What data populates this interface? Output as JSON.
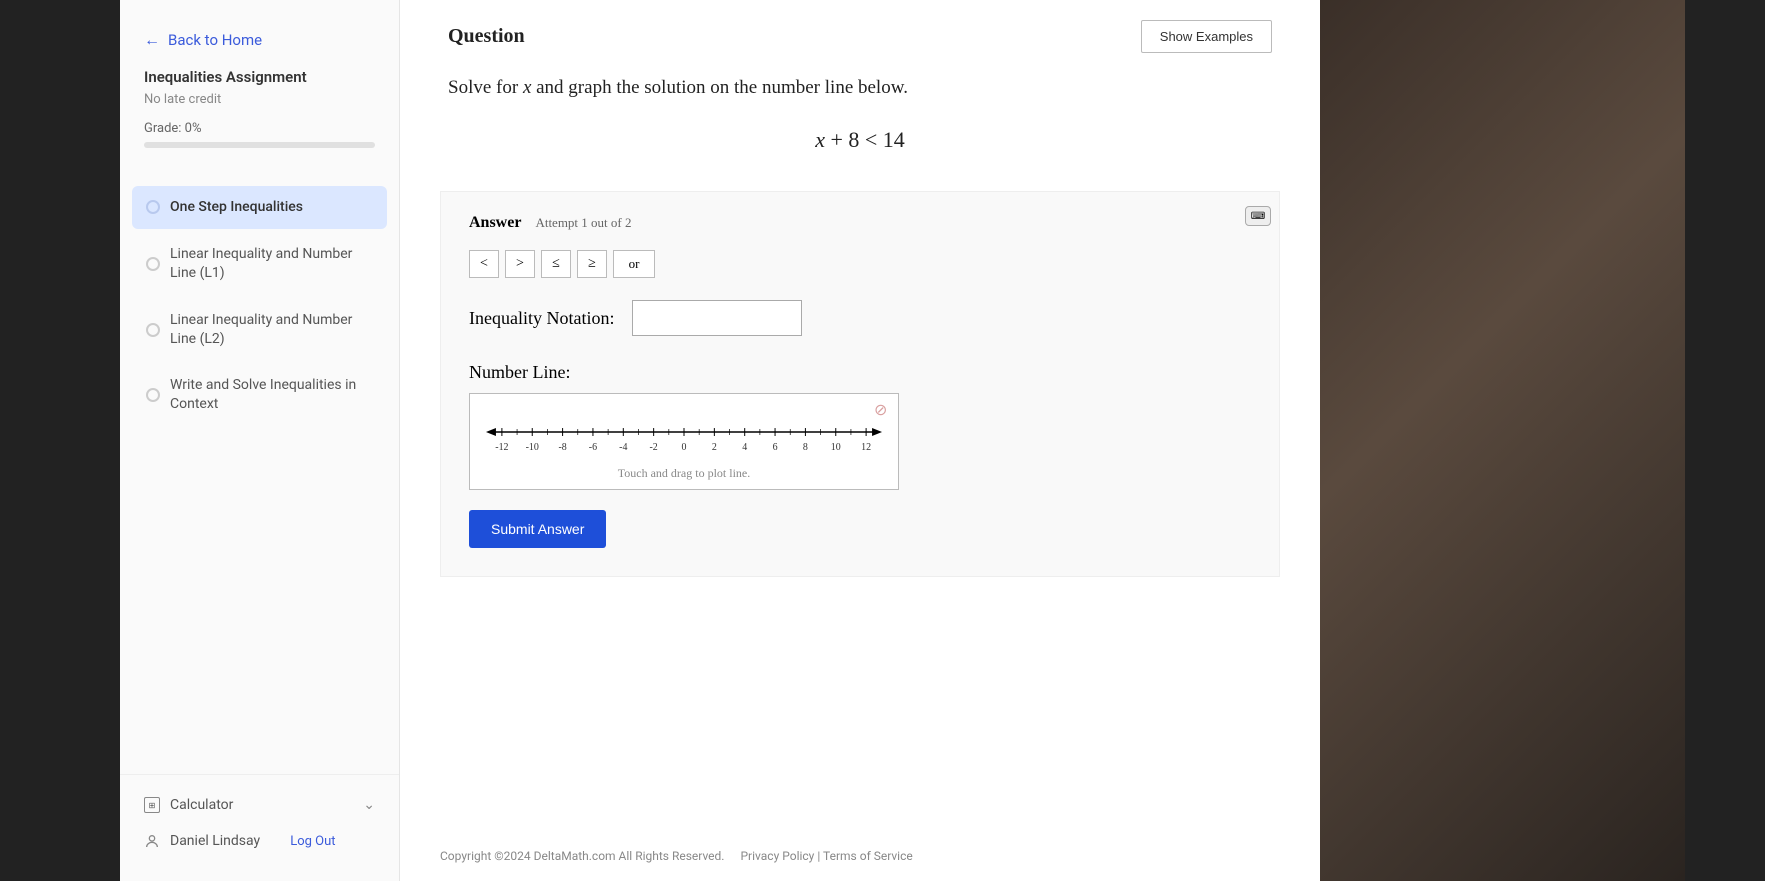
{
  "sidebar": {
    "back_label": "Back to Home",
    "assignment_title": "Inequalities Assignment",
    "late_credit": "No late credit",
    "grade_label": "Grade: 0%",
    "items": [
      {
        "label": "One Step Inequalities",
        "active": true
      },
      {
        "label": "Linear Inequality and Number Line (L1)",
        "active": false
      },
      {
        "label": "Linear Inequality and Number Line (L2)",
        "active": false
      },
      {
        "label": "Write and Solve Inequalities in Context",
        "active": false
      }
    ],
    "calculator_label": "Calculator",
    "user_name": "Daniel Lindsay",
    "logout_label": "Log Out"
  },
  "question": {
    "header": "Question",
    "show_examples": "Show Examples",
    "prompt_pre": "Solve for ",
    "prompt_var": "x",
    "prompt_post": " and graph the solution on the number line below.",
    "equation": "x + 8 < 14"
  },
  "answer": {
    "label": "Answer",
    "attempt": "Attempt 1 out of 2",
    "operators": [
      "<",
      ">",
      "≤",
      "≥"
    ],
    "or_label": "or",
    "inequality_label": "Inequality Notation:",
    "numberline_label": "Number Line:",
    "numberline_hint": "Touch and drag to plot line.",
    "ticks": [
      -12,
      -10,
      -8,
      -6,
      -4,
      -2,
      0,
      2,
      4,
      6,
      8,
      10,
      12
    ],
    "submit_label": "Submit Answer"
  },
  "footer": {
    "copyright": "Copyright ©2024 DeltaMath.com All Rights Reserved.",
    "privacy": "Privacy Policy",
    "terms": "Terms of Service"
  },
  "colors": {
    "accent": "#3b5bdb",
    "submit": "#1e4fd9",
    "nav_active_bg": "#dbe7ff"
  }
}
